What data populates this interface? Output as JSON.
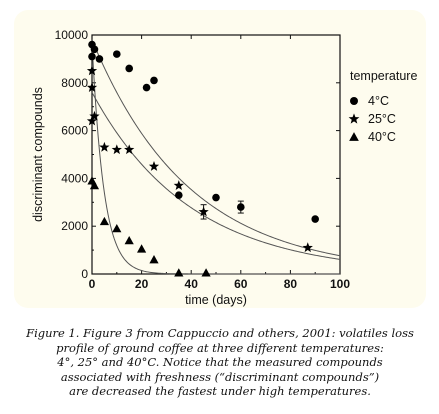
{
  "chart_data": {
    "type": "scatter",
    "xlabel": "time (days)",
    "ylabel": "discriminant compounds",
    "xlim": [
      0,
      100
    ],
    "ylim": [
      0,
      10000
    ],
    "xticks": [
      "0",
      "20",
      "40",
      "60",
      "80",
      "100"
    ],
    "yticks": [
      "0",
      "2000",
      "4000",
      "6000",
      "8000",
      "10000"
    ],
    "grid": false,
    "legend": {
      "title": "temperature",
      "position": "right",
      "entries": [
        {
          "label": "4°C",
          "marker": "circle"
        },
        {
          "label": "25°C",
          "marker": "star"
        },
        {
          "label": "40°C",
          "marker": "triangle"
        }
      ]
    },
    "series": [
      {
        "marker": "circle",
        "points": [
          [
            0,
            9600
          ],
          [
            0,
            9100
          ],
          [
            1,
            9400
          ],
          [
            3,
            9000
          ],
          [
            10,
            9200
          ],
          [
            15,
            8600
          ],
          [
            22,
            7800
          ],
          [
            25,
            8100
          ],
          [
            35,
            3300
          ],
          [
            50,
            3200
          ],
          [
            60,
            2800
          ],
          [
            90,
            2300
          ]
        ],
        "fit": {
          "a": 9800,
          "k": 0.0255
        }
      },
      {
        "marker": "star",
        "points": [
          [
            0,
            8500
          ],
          [
            0,
            7800
          ],
          [
            1,
            6600
          ],
          [
            0,
            6400
          ],
          [
            5,
            5300
          ],
          [
            10,
            5200
          ],
          [
            15,
            5200
          ],
          [
            25,
            4500
          ],
          [
            35,
            3700
          ],
          [
            45,
            2600
          ],
          [
            87,
            1100
          ]
        ],
        "fit": {
          "a": 7600,
          "k": 0.0252
        }
      },
      {
        "marker": "triangle",
        "points": [
          [
            0,
            3900
          ],
          [
            1,
            3700
          ],
          [
            5,
            2200
          ],
          [
            10,
            1900
          ],
          [
            15,
            1400
          ],
          [
            20,
            1050
          ],
          [
            25,
            600
          ],
          [
            35,
            50
          ],
          [
            46,
            50
          ]
        ],
        "fit": {
          "a": 9700,
          "k": 0.21
        }
      }
    ],
    "error_bars": [
      {
        "x": 45,
        "y": 2600,
        "err": 300
      },
      {
        "x": 60,
        "y": 2800,
        "err": 250
      }
    ]
  },
  "caption": {
    "lines": [
      "Figure 1. Figure 3 from Cappuccio and others, 2001: volatiles loss",
      "profile of ground coffee at three different temperatures:",
      "4°, 25° and 40°C. Notice that the measured compounds",
      "associated with freshness (“discriminant compounds”)",
      "are decreased the fastest under high temperatures."
    ]
  }
}
